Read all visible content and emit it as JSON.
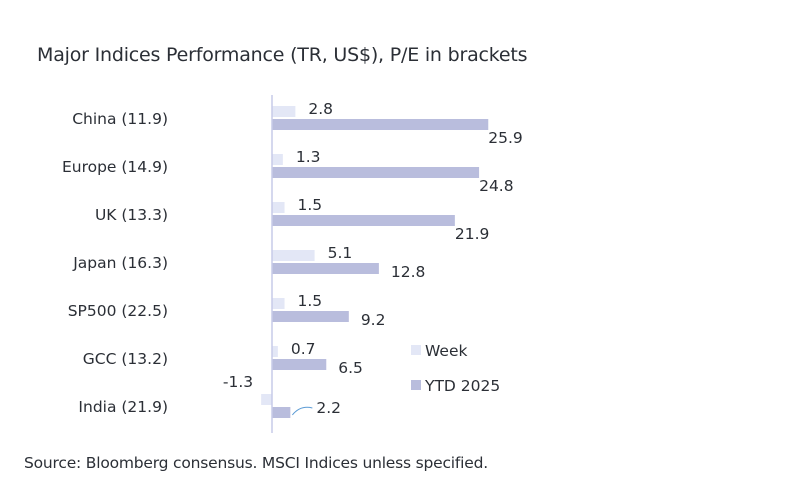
{
  "title": "Major Indices Performance (TR, US$), P/E in brackets",
  "source": "Source: Bloomberg consensus. MSCI Indices unless specified.",
  "colors": {
    "week": "#e3e7f6",
    "ytd": "#b9bddd",
    "axis": "#c7cbe8",
    "text": "#2b2f36"
  },
  "chart_data": {
    "type": "bar",
    "orientation": "horizontal",
    "categories": [
      "China (11.9)",
      "Europe (14.9)",
      "UK (13.3)",
      "Japan (16.3)",
      "SP500 (22.5)",
      "GCC (13.2)",
      "India (21.9)"
    ],
    "series": [
      {
        "name": "Week",
        "values": [
          2.8,
          1.3,
          1.5,
          5.1,
          1.5,
          0.7,
          -1.3
        ]
      },
      {
        "name": "YTD 2025",
        "values": [
          25.9,
          24.8,
          21.9,
          12.8,
          9.2,
          6.5,
          2.2
        ]
      }
    ],
    "legend_position": "right",
    "data_labels": true,
    "grid": false
  }
}
